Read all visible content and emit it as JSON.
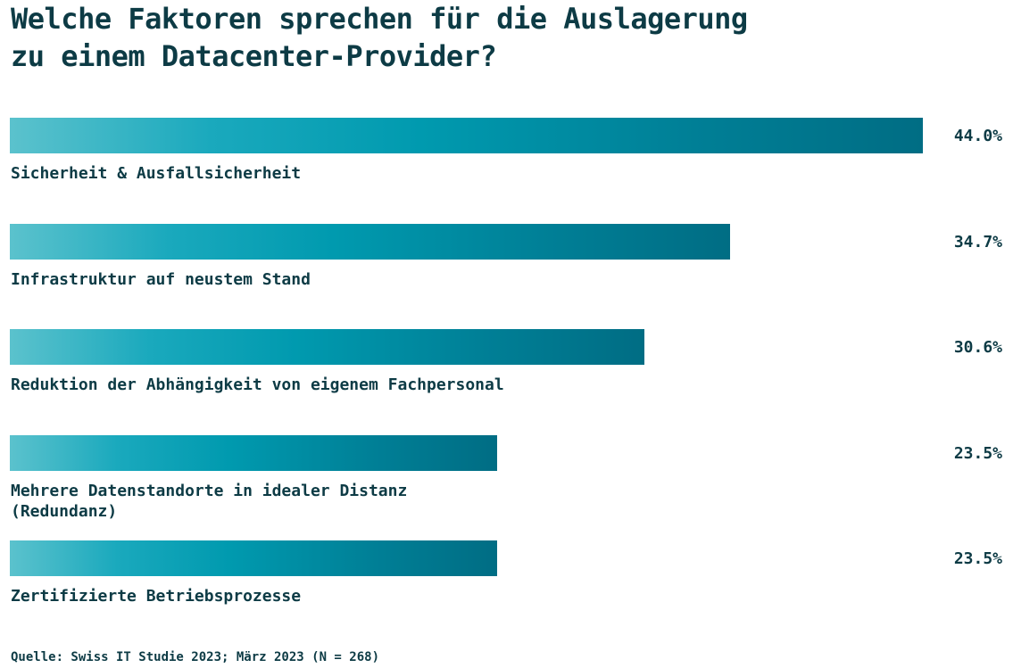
{
  "header": {
    "title_line1": "Welche Faktoren sprechen für die Auslagerung",
    "title_line2": "zu einem Datacenter-Provider?"
  },
  "footer": {
    "source": "Quelle: Swiss IT Studie 2023; März 2023 (N = 268)"
  },
  "colors": {
    "text": "#0d3b45",
    "bar_start": "#5bc2cd",
    "bar_mid": "#009aaf",
    "bar_end": "#006d84"
  },
  "chart_data": {
    "type": "bar",
    "orientation": "horizontal",
    "title": "Welche Faktoren sprechen für die Auslagerung zu einem Datacenter-Provider?",
    "categories": [
      "Sicherheit & Ausfallsicherheit",
      "Infrastruktur auf neustem Stand",
      "Reduktion der Abhängigkeit von eigenem Fachpersonal",
      "Mehrere Datenstandorte in idealer Distanz\n(Redundanz)",
      "Zertifizierte Betriebsprozesse"
    ],
    "values": [
      44.0,
      34.7,
      30.6,
      23.5,
      23.5
    ],
    "value_labels": [
      "44.0%",
      "34.7%",
      "30.6%",
      "23.5%",
      "23.5%"
    ],
    "unit": "%",
    "xlim": [
      0,
      44.0
    ],
    "grid": false,
    "legend": "none",
    "source": "Quelle: Swiss IT Studie 2023; März 2023 (N = 268)"
  }
}
